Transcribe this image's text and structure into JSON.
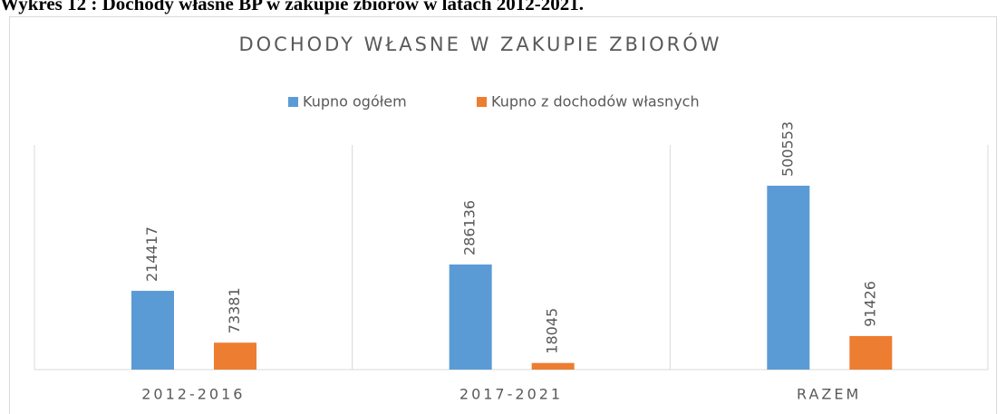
{
  "caption": "Wykres 12 : Dochody własne BP w zakupie zbiorów w latach 2012-2021.",
  "chart_data": {
    "type": "bar",
    "title": "DOCHODY WŁASNE W ZAKUPIE ZBIORÓW",
    "categories": [
      "2012-2016",
      "2017-2021",
      "RAZEM"
    ],
    "series": [
      {
        "name": "Kupno ogółem",
        "color": "#5b9bd5",
        "values": [
          214417,
          286136,
          500553
        ]
      },
      {
        "name": "Kupno z dochodów własnych",
        "color": "#ed7d31",
        "values": [
          73381,
          18045,
          91426
        ]
      }
    ]
  }
}
